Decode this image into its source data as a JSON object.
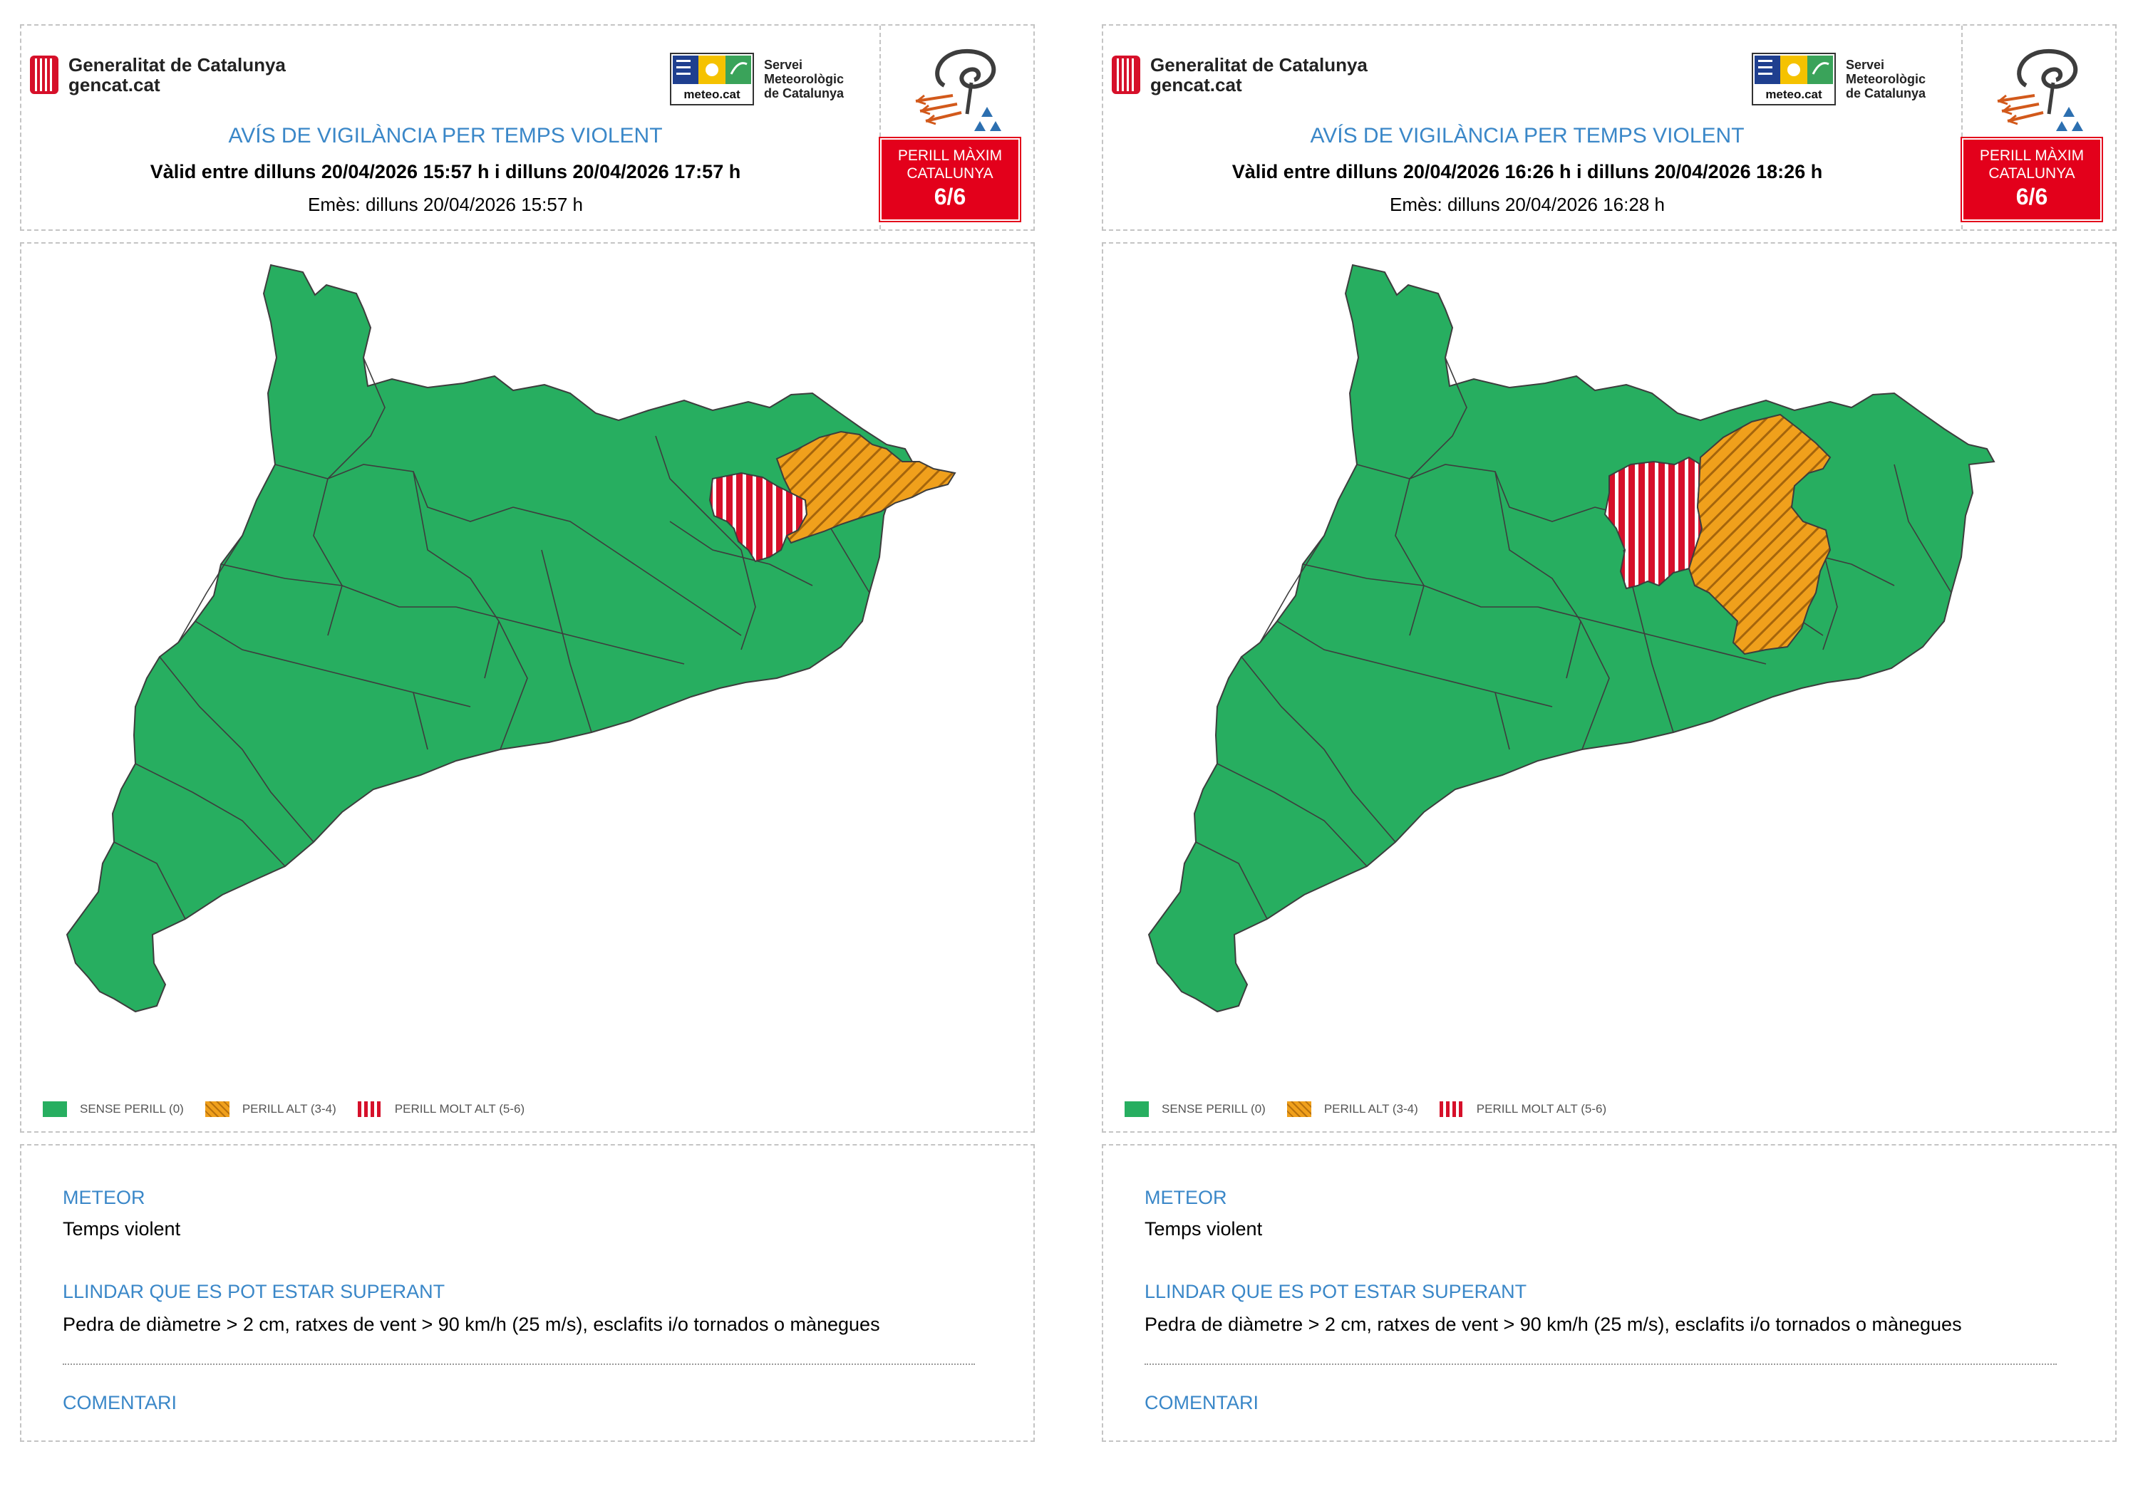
{
  "panels": [
    {
      "org": {
        "line1": "Generalitat de Catalunya",
        "line2": "gencat.cat"
      },
      "smc": {
        "logo_text": "meteo.cat",
        "line1": "Servei",
        "line2": "Meteorològic",
        "line3": "de Catalunya"
      },
      "title": "AVÍS DE VIGILÀNCIA PER TEMPS VIOLENT",
      "valid": "Vàlid entre dilluns 20/04/2026 15:57 h i dilluns 20/04/2026 17:57 h",
      "issued": "Emès: dilluns 20/04/2026 15:57 h",
      "badge": {
        "line1": "PERILL MÀXIM",
        "line2": "CATALUNYA",
        "level": "6/6"
      },
      "legend": {
        "none": "SENSE PERILL (0)",
        "high": "PERILL ALT (3-4)",
        "very_high": "PERILL MOLT ALT (5-6)"
      },
      "info": {
        "meteor_label": "METEOR",
        "meteor": "Temps violent",
        "threshold_label": "LLINDAR QUE ES POT ESTAR SUPERANT",
        "threshold": "Pedra de diàmetre > 2 cm, ratxes de vent > 90 km/h (25 m/s), esclafits i/o tornados o mànegues",
        "comment_label": "COMENTARI"
      },
      "map_zones": {
        "very_high": "red-hatched",
        "high": "orange-hatched",
        "rest": "green"
      }
    },
    {
      "org": {
        "line1": "Generalitat de Catalunya",
        "line2": "gencat.cat"
      },
      "smc": {
        "logo_text": "meteo.cat",
        "line1": "Servei",
        "line2": "Meteorològic",
        "line3": "de Catalunya"
      },
      "title": "AVÍS DE VIGILÀNCIA PER TEMPS VIOLENT",
      "valid": "Vàlid entre dilluns 20/04/2026 16:26 h i dilluns 20/04/2026 18:26 h",
      "issued": "Emès: dilluns 20/04/2026 16:28 h",
      "badge": {
        "line1": "PERILL MÀXIM",
        "line2": "CATALUNYA",
        "level": "6/6"
      },
      "legend": {
        "none": "SENSE PERILL (0)",
        "high": "PERILL ALT (3-4)",
        "very_high": "PERILL MOLT ALT (5-6)"
      },
      "info": {
        "meteor_label": "METEOR",
        "meteor": "Temps violent",
        "threshold_label": "LLINDAR QUE ES POT ESTAR SUPERANT",
        "threshold": "Pedra de diàmetre > 2 cm, ratxes de vent > 90 km/h (25 m/s), esclafits i/o tornados o mànegues",
        "comment_label": "COMENTARI"
      },
      "map_zones": {
        "very_high": "red-hatched",
        "high": "orange-hatched",
        "rest": "green"
      }
    }
  ],
  "colors": {
    "accent": "#3a87c8",
    "danger": "#e3001b",
    "safe": "#27ae60",
    "high": "#f0a01c",
    "very_high": "#d6102a"
  }
}
